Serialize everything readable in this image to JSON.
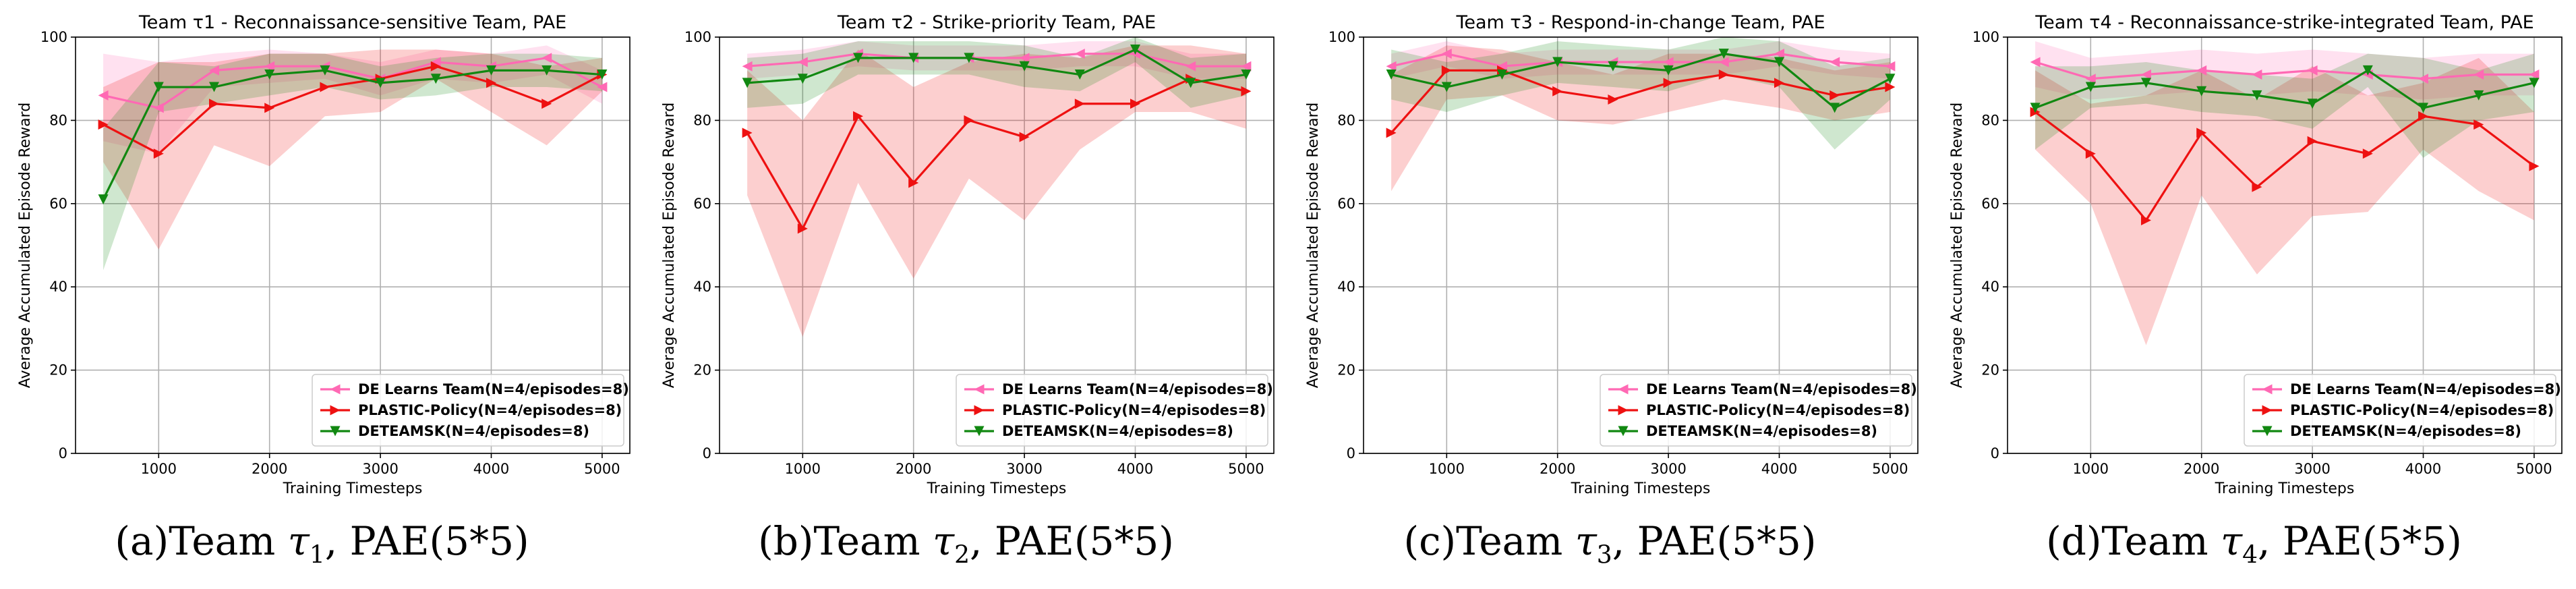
{
  "figure": {
    "y_axis_label": "Average Accumulated Episode Reward",
    "x_axis_label": "Training Timesteps",
    "legend": [
      {
        "name": "DE Learns Team(N=4/episodes=8)",
        "color": "#ff69b4",
        "marker": "triangle-left"
      },
      {
        "name": "PLASTIC-Policy(N=4/episodes=8)",
        "color": "#ee1111",
        "marker": "triangle-right"
      },
      {
        "name": "DETEAMSK(N=4/episodes=8)",
        "color": "#118811",
        "marker": "triangle-down"
      }
    ]
  },
  "captions": [
    {
      "prefix": "(a)Team ",
      "tau": "τ",
      "sub": "1",
      "suffix": ", PAE(5*5)"
    },
    {
      "prefix": "(b)Team ",
      "tau": "τ",
      "sub": "2",
      "suffix": ", PAE(5*5)"
    },
    {
      "prefix": "(c)Team ",
      "tau": "τ",
      "sub": "3",
      "suffix": ", PAE(5*5)"
    },
    {
      "prefix": "(d)Team ",
      "tau": "τ",
      "sub": "4",
      "suffix": ", PAE(5*5)"
    }
  ],
  "chart_data": [
    {
      "type": "line",
      "title": "Team τ1 - Reconnaissance-sensitive Team, PAE",
      "xlabel": "Training Timesteps",
      "ylabel": "Average Accumulated Episode Reward",
      "x": [
        500,
        1000,
        1500,
        2000,
        2500,
        3000,
        3500,
        4000,
        4500,
        5000
      ],
      "xlim": [
        250,
        5250
      ],
      "ylim": [
        0,
        100
      ],
      "xticks": [
        1000,
        2000,
        3000,
        4000,
        5000
      ],
      "yticks": [
        0,
        20,
        40,
        60,
        80,
        100
      ],
      "grid": true,
      "legend_position": "lower-right",
      "series": [
        {
          "name": "DE Learns Team(N=4/episodes=8)",
          "values": [
            86,
            83,
            92,
            93,
            93,
            90,
            94,
            93,
            95,
            88
          ],
          "lower": [
            75,
            72,
            88,
            89,
            90,
            86,
            90,
            89,
            91,
            84
          ],
          "upper": [
            96,
            94,
            96,
            97,
            96,
            94,
            97,
            96,
            98,
            92
          ]
        },
        {
          "name": "PLASTIC-Policy(N=4/episodes=8)",
          "values": [
            79,
            72,
            84,
            83,
            88,
            90,
            93,
            89,
            84,
            91
          ],
          "lower": [
            70,
            49,
            74,
            69,
            81,
            82,
            90,
            82,
            74,
            87
          ],
          "upper": [
            88,
            94,
            94,
            96,
            96,
            97,
            97,
            96,
            93,
            95
          ]
        },
        {
          "name": "DETEAMSK(N=4/episodes=8)",
          "values": [
            61,
            88,
            88,
            91,
            92,
            89,
            90,
            92,
            92,
            91
          ],
          "lower": [
            44,
            82,
            84,
            86,
            88,
            85,
            86,
            88,
            88,
            87
          ],
          "upper": [
            78,
            94,
            93,
            96,
            96,
            93,
            95,
            96,
            96,
            95
          ]
        }
      ]
    },
    {
      "type": "line",
      "title": "Team τ2 - Strike-priority Team, PAE",
      "xlabel": "Training Timesteps",
      "ylabel": "Average Accumulated Episode Reward",
      "x": [
        500,
        1000,
        1500,
        2000,
        2500,
        3000,
        3500,
        4000,
        4500,
        5000
      ],
      "xlim": [
        250,
        5250
      ],
      "ylim": [
        0,
        100
      ],
      "xticks": [
        1000,
        2000,
        3000,
        4000,
        5000
      ],
      "yticks": [
        0,
        20,
        40,
        60,
        80,
        100
      ],
      "grid": true,
      "legend_position": "lower-right",
      "series": [
        {
          "name": "DE Learns Team(N=4/episodes=8)",
          "values": [
            93,
            94,
            96,
            95,
            95,
            95,
            96,
            96,
            93,
            93
          ],
          "lower": [
            90,
            91,
            93,
            92,
            92,
            92,
            93,
            93,
            90,
            90
          ],
          "upper": [
            96,
            97,
            99,
            98,
            98,
            98,
            99,
            99,
            96,
            96
          ]
        },
        {
          "name": "PLASTIC-Policy(N=4/episodes=8)",
          "values": [
            77,
            54,
            81,
            65,
            80,
            76,
            84,
            84,
            90,
            87
          ],
          "lower": [
            62,
            28,
            65,
            42,
            66,
            56,
            73,
            82,
            82,
            78
          ],
          "upper": [
            92,
            80,
            97,
            88,
            94,
            96,
            95,
            98,
            98,
            96
          ]
        },
        {
          "name": "DETEAMSK(N=4/episodes=8)",
          "values": [
            89,
            90,
            95,
            95,
            95,
            93,
            91,
            97,
            89,
            91
          ],
          "lower": [
            83,
            84,
            91,
            91,
            91,
            88,
            87,
            94,
            83,
            86
          ],
          "upper": [
            95,
            96,
            99,
            99,
            99,
            98,
            95,
            100,
            95,
            96
          ]
        }
      ]
    },
    {
      "type": "line",
      "title": "Team τ3 - Respond-in-change Team, PAE",
      "xlabel": "Training Timesteps",
      "ylabel": "Average Accumulated Episode Reward",
      "x": [
        500,
        1000,
        1500,
        2000,
        2500,
        3000,
        3500,
        4000,
        4500,
        5000
      ],
      "xlim": [
        250,
        5250
      ],
      "ylim": [
        0,
        100
      ],
      "xticks": [
        1000,
        2000,
        3000,
        4000,
        5000
      ],
      "yticks": [
        0,
        20,
        40,
        60,
        80,
        100
      ],
      "grid": true,
      "legend_position": "lower-right",
      "series": [
        {
          "name": "DE Learns Team(N=4/episodes=8)",
          "values": [
            93,
            96,
            93,
            94,
            94,
            94,
            94,
            96,
            94,
            93
          ],
          "lower": [
            90,
            93,
            90,
            91,
            91,
            91,
            91,
            93,
            91,
            90
          ],
          "upper": [
            96,
            99,
            96,
            97,
            97,
            97,
            97,
            99,
            97,
            96
          ]
        },
        {
          "name": "PLASTIC-Policy(N=4/episodes=8)",
          "values": [
            77,
            92,
            92,
            87,
            85,
            89,
            91,
            89,
            86,
            88
          ],
          "lower": [
            63,
            85,
            86,
            80,
            79,
            82,
            85,
            83,
            80,
            82
          ],
          "upper": [
            91,
            98,
            97,
            94,
            91,
            96,
            96,
            95,
            92,
            94
          ]
        },
        {
          "name": "DETEAMSK(N=4/episodes=8)",
          "values": [
            91,
            88,
            91,
            94,
            93,
            92,
            96,
            94,
            83,
            90
          ],
          "lower": [
            85,
            82,
            86,
            89,
            88,
            87,
            91,
            88,
            73,
            85
          ],
          "upper": [
            97,
            94,
            96,
            99,
            98,
            97,
            100,
            99,
            93,
            95
          ]
        }
      ]
    },
    {
      "type": "line",
      "title": "Team τ4 - Reconnaissance-strike-integrated Team, PAE",
      "xlabel": "Training Timesteps",
      "ylabel": "Average Accumulated Episode Reward",
      "x": [
        500,
        1000,
        1500,
        2000,
        2500,
        3000,
        3500,
        4000,
        4500,
        5000
      ],
      "xlim": [
        250,
        5250
      ],
      "ylim": [
        0,
        100
      ],
      "xticks": [
        1000,
        2000,
        3000,
        4000,
        5000
      ],
      "yticks": [
        0,
        20,
        40,
        60,
        80,
        100
      ],
      "grid": true,
      "legend_position": "lower-right",
      "series": [
        {
          "name": "DE Learns Team(N=4/episodes=8)",
          "values": [
            94,
            90,
            91,
            92,
            91,
            92,
            91,
            90,
            91,
            91
          ],
          "lower": [
            88,
            85,
            86,
            87,
            86,
            87,
            86,
            85,
            86,
            86
          ],
          "upper": [
            99,
            95,
            96,
            97,
            96,
            97,
            96,
            95,
            96,
            96
          ]
        },
        {
          "name": "PLASTIC-Policy(N=4/episodes=8)",
          "values": [
            82,
            72,
            56,
            77,
            64,
            75,
            72,
            81,
            79,
            69
          ],
          "lower": [
            73,
            60,
            26,
            62,
            43,
            57,
            58,
            73,
            63,
            56
          ],
          "upper": [
            92,
            84,
            86,
            92,
            85,
            93,
            86,
            89,
            95,
            82
          ]
        },
        {
          "name": "DETEAMSK(N=4/episodes=8)",
          "values": [
            83,
            88,
            89,
            87,
            86,
            84,
            92,
            83,
            86,
            89
          ],
          "lower": [
            73,
            83,
            84,
            82,
            81,
            78,
            88,
            71,
            80,
            82
          ],
          "upper": [
            93,
            93,
            94,
            92,
            91,
            90,
            96,
            95,
            92,
            96
          ]
        }
      ]
    }
  ]
}
